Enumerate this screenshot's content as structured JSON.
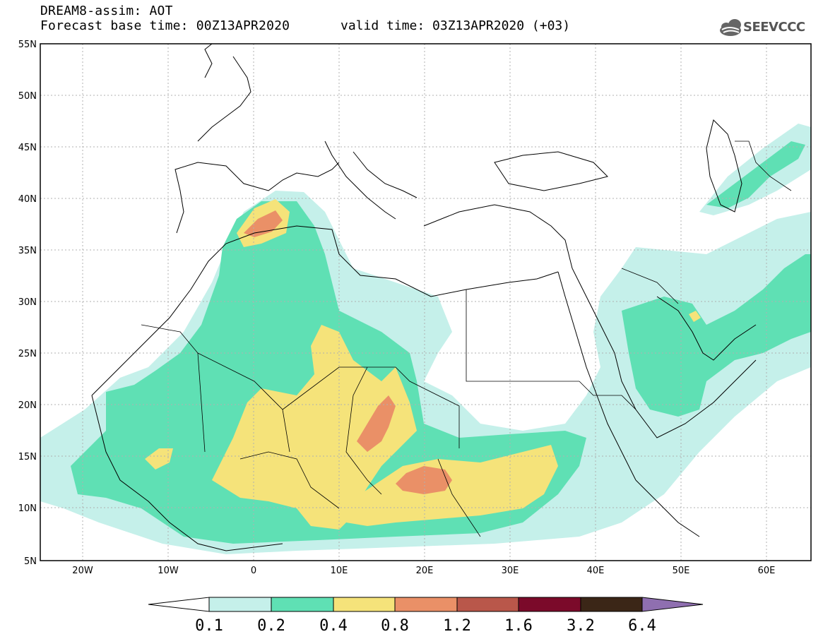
{
  "title": {
    "line1": "DREAM8-assim: AOT",
    "line2": "Forecast base time: 00Z13APR2020",
    "valid": "valid time: 03Z13APR2020 (+03)"
  },
  "logo": {
    "text": "SEEVCCC"
  },
  "axes": {
    "lat_labels": [
      "55N",
      "50N",
      "45N",
      "40N",
      "35N",
      "30N",
      "25N",
      "20N",
      "15N",
      "10N",
      "5N"
    ],
    "lon_labels": [
      "20W",
      "10W",
      "0",
      "10E",
      "20E",
      "30E",
      "40E",
      "50E",
      "60E"
    ]
  },
  "colorbar": {
    "labels": [
      "0.1",
      "0.2",
      "0.4",
      "0.8",
      "1.2",
      "1.6",
      "3.2",
      "6.4"
    ],
    "colors": [
      "#c5f0ea",
      "#5fe0b4",
      "#f5e37a",
      "#ea9067",
      "#b9574a",
      "#7b0a2a",
      "#3b2617",
      "#8f6fb0"
    ]
  },
  "colors": {
    "frame": "#000000",
    "grid": "#b0b0b0",
    "coast": "#000000"
  }
}
